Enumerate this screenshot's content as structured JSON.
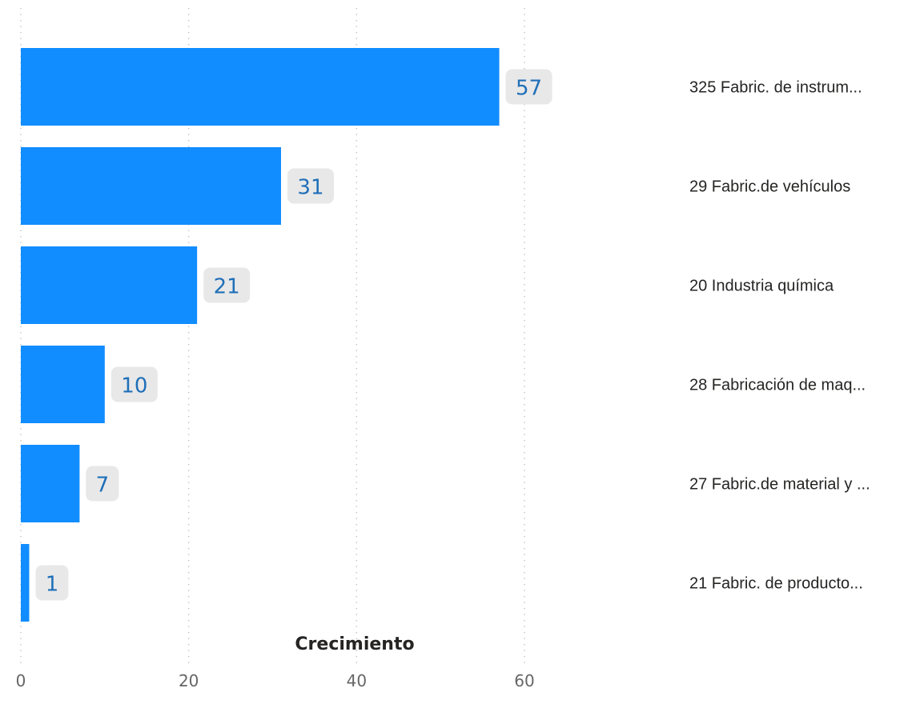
{
  "chart_data": {
    "type": "bar",
    "orientation": "horizontal",
    "categories": [
      "325 Fabric. de instrum...",
      "29 Fabric.de vehículos",
      "20 Industria química",
      "28 Fabricación de maq...",
      "27 Fabric.de material y ...",
      "21 Fabric. de producto..."
    ],
    "values": [
      57,
      31,
      21,
      10,
      7,
      1
    ],
    "data_labels": [
      "57",
      "31",
      "21",
      "10",
      "7",
      "1"
    ],
    "xlabel": "Crecimiento",
    "xlim": [
      0,
      65
    ],
    "x_ticks": [
      0,
      20,
      40,
      60
    ],
    "x_tick_labels": [
      "0",
      "20",
      "40",
      "60"
    ],
    "grid": "vertical dotted",
    "bar_color": "#118DFF",
    "label_background": "#E8E8E8",
    "label_color": "#1F6FB8",
    "category_label_position": "right"
  }
}
